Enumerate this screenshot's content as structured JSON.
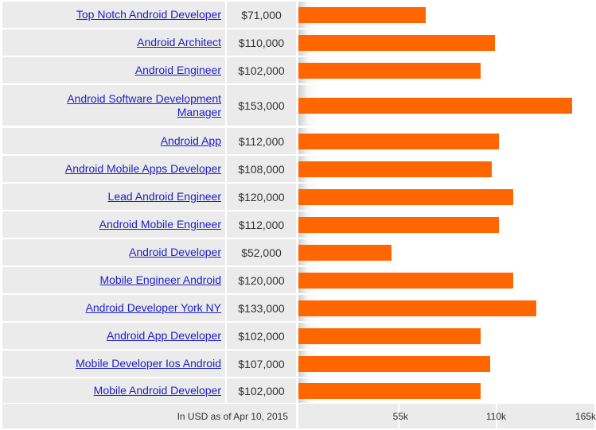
{
  "chart_data": {
    "type": "bar",
    "orientation": "horizontal",
    "categories": [
      "Top Notch Android Developer",
      "Android Architect",
      "Android Engineer",
      "Android Software Development Manager",
      "Android App",
      "Android Mobile Apps Developer",
      "Lead Android Engineer",
      "Android Mobile Engineer",
      "Android Developer",
      "Mobile Engineer Android",
      "Android Developer York NY",
      "Android App Developer",
      "Mobile Developer Ios Android",
      "Mobile Android Developer"
    ],
    "values": [
      71000,
      110000,
      102000,
      153000,
      112000,
      108000,
      120000,
      112000,
      52000,
      120000,
      133000,
      102000,
      107000,
      102000
    ],
    "value_labels": [
      "$71,000",
      "$110,000",
      "$102,000",
      "$153,000",
      "$112,000",
      "$108,000",
      "$120,000",
      "$112,000",
      "$52,000",
      "$120,000",
      "$133,000",
      "$102,000",
      "$107,000",
      "$102,000"
    ],
    "x_ticks": [
      55000,
      110000,
      165000
    ],
    "x_tick_labels": [
      "55k",
      "110k",
      "165k"
    ],
    "xlim": [
      0,
      165000
    ],
    "note": "In USD as of Apr 10, 2015",
    "bar_color": "#ff6600",
    "link_color": "#2020c8",
    "grid": false
  }
}
